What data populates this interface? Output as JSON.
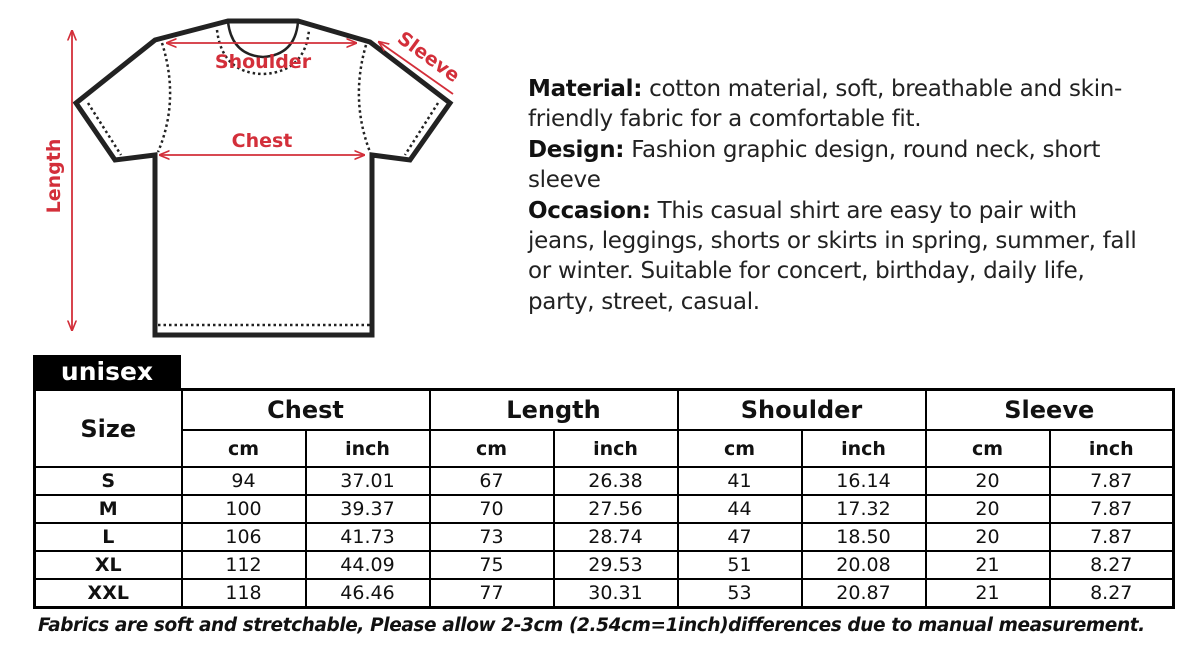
{
  "diagram": {
    "labels": {
      "shoulder": "Shoulder",
      "sleeve": "Sleeve",
      "chest": "Chest",
      "length": "Length"
    },
    "accent_color": "#d32f3a"
  },
  "description": [
    {
      "label": "Material:",
      "text": " cotton material, soft, breathable and skin-friendly fabric for a comfortable fit."
    },
    {
      "label": "Design:",
      "text": " Fashion graphic design, round neck, short sleeve"
    },
    {
      "label": "Occasion:",
      "text": " This casual shirt are easy to pair with jeans, leggings, shorts or skirts in spring, summer, fall or winter. Suitable for concert, birthday, daily life, party, street, casual."
    }
  ],
  "table": {
    "tab_label": "unisex",
    "size_header": "Size",
    "groups": [
      "Chest",
      "Length",
      "Shoulder",
      "Sleeve"
    ],
    "units": [
      "cm",
      "inch"
    ],
    "rows": [
      [
        "S",
        "94",
        "37.01",
        "67",
        "26.38",
        "41",
        "16.14",
        "20",
        "7.87"
      ],
      [
        "M",
        "100",
        "39.37",
        "70",
        "27.56",
        "44",
        "17.32",
        "20",
        "7.87"
      ],
      [
        "L",
        "106",
        "41.73",
        "73",
        "28.74",
        "47",
        "18.50",
        "20",
        "7.87"
      ],
      [
        "XL",
        "112",
        "44.09",
        "75",
        "29.53",
        "51",
        "20.08",
        "21",
        "8.27"
      ],
      [
        "XXL",
        "118",
        "46.46",
        "77",
        "30.31",
        "53",
        "20.87",
        "21",
        "8.27"
      ]
    ]
  },
  "note": "Fabrics are soft and stretchable, Please allow 2-3cm (2.54cm=1inch)differences due to manual measurement."
}
